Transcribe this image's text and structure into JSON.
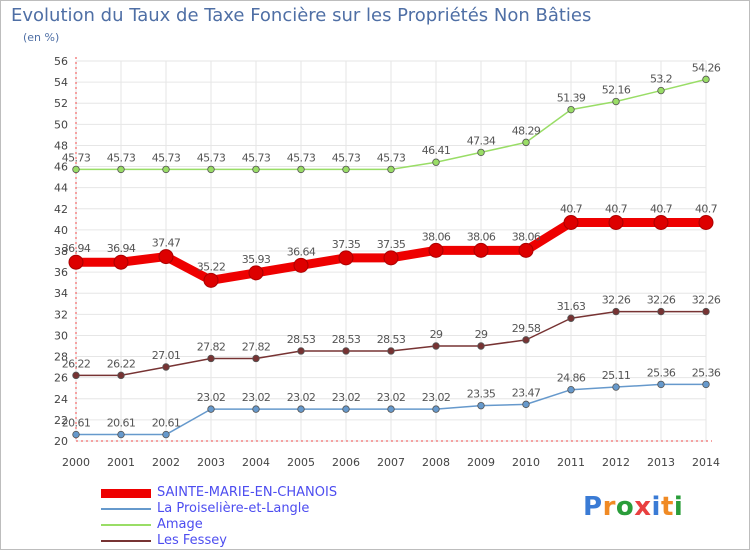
{
  "title": "Evolution du Taux de Taxe Foncière sur les Propriétés Non Bâties",
  "subtitle": "(en %)",
  "logo_text": "Proxiti",
  "chart_data": {
    "type": "line",
    "x": [
      2000,
      2001,
      2002,
      2003,
      2004,
      2005,
      2006,
      2007,
      2008,
      2009,
      2010,
      2011,
      2012,
      2013,
      2014
    ],
    "ylim": [
      20,
      56
    ],
    "yticks": [
      20,
      22,
      24,
      26,
      28,
      30,
      32,
      34,
      36,
      38,
      40,
      42,
      44,
      46,
      48,
      50,
      52,
      54,
      56
    ],
    "grid": true,
    "legend_position": "bottom-left",
    "series": [
      {
        "name": "SAINTE-MARIE-EN-CHANOIS",
        "color": "#ee0000",
        "width": 9,
        "values": [
          36.94,
          36.94,
          37.47,
          35.22,
          35.93,
          36.64,
          37.35,
          37.35,
          38.06,
          38.06,
          38.06,
          40.7,
          40.7,
          40.7,
          40.7
        ],
        "labels": [
          "36.94",
          "36.94",
          "37.47",
          "35.22",
          "35.93",
          "36.64",
          "37.35",
          "37.35",
          "38.06",
          "38.06",
          "38.06",
          "40.7",
          "40.7",
          "40.7",
          "40.7"
        ]
      },
      {
        "name": "La Proiselière-et-Langle",
        "color": "#6699cc",
        "width": 1.5,
        "values": [
          20.61,
          20.61,
          20.61,
          23.02,
          23.02,
          23.02,
          23.02,
          23.02,
          23.02,
          23.35,
          23.47,
          24.86,
          25.11,
          25.36,
          25.36
        ],
        "labels": [
          "20.61",
          "20.61",
          "20.61",
          "23.02",
          "23.02",
          "23.02",
          "23.02",
          "23.02",
          "23.02",
          "23.35",
          "23.47",
          "24.86",
          "25.11",
          "25.36",
          "25.36"
        ]
      },
      {
        "name": "Amage",
        "color": "#99dd66",
        "width": 1.5,
        "values": [
          45.73,
          45.73,
          45.73,
          45.73,
          45.73,
          45.73,
          45.73,
          45.73,
          46.41,
          47.34,
          48.29,
          51.39,
          52.16,
          53.2,
          54.26
        ],
        "labels": [
          "45.73",
          "45.73",
          "45.73",
          "45.73",
          "45.73",
          "45.73",
          "45.73",
          "45.73",
          "46.41",
          "47.34",
          "48.29",
          "51.39",
          "52.16",
          "53.2",
          "54.26"
        ]
      },
      {
        "name": "Les Fessey",
        "color": "#773333",
        "width": 1.5,
        "values": [
          26.22,
          26.22,
          27.01,
          27.82,
          27.82,
          28.53,
          28.53,
          28.53,
          29,
          29,
          29.58,
          31.63,
          32.26,
          32.26,
          32.26
        ],
        "labels": [
          "26.22",
          "26.22",
          "27.01",
          "27.82",
          "27.82",
          "28.53",
          "28.53",
          "28.53",
          "29",
          "29",
          "29.58",
          "31.63",
          "32.26",
          "32.26",
          "32.26"
        ]
      }
    ]
  }
}
